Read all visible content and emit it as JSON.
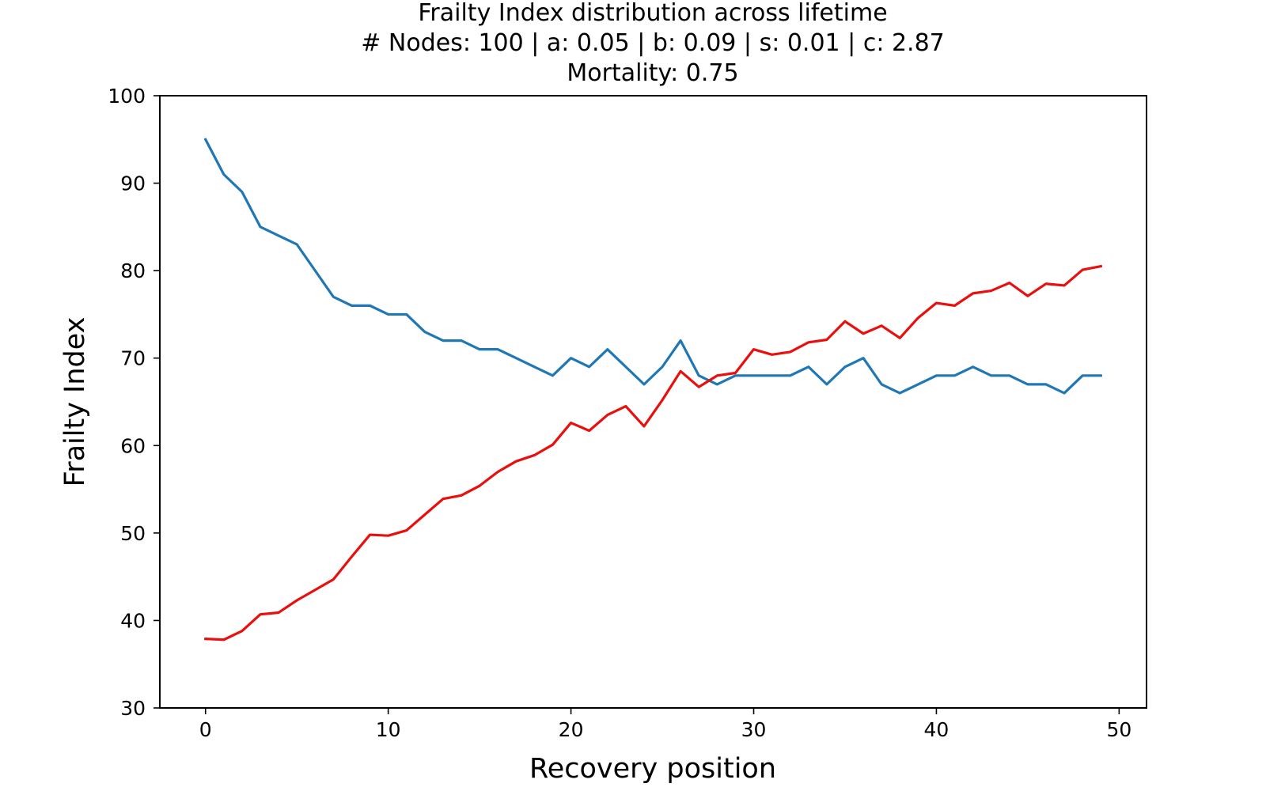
{
  "chart_data": {
    "type": "line",
    "title_lines": [
      "Frailty Index distribution across lifetime",
      "# Nodes: 100 | a: 0.05 | b: 0.09 | s: 0.01 | c: 2.87",
      "Mortality: 0.75"
    ],
    "xlabel": "Recovery position",
    "ylabel": "Frailty Index",
    "xlim": [
      -2.5,
      51.5
    ],
    "ylim": [
      30,
      100
    ],
    "xticks": [
      0,
      10,
      20,
      30,
      40,
      50
    ],
    "yticks": [
      30,
      40,
      50,
      60,
      70,
      80,
      90,
      100
    ],
    "grid": false,
    "x": [
      0,
      1,
      2,
      3,
      4,
      5,
      6,
      7,
      8,
      9,
      10,
      11,
      12,
      13,
      14,
      15,
      16,
      17,
      18,
      19,
      20,
      21,
      22,
      23,
      24,
      25,
      26,
      27,
      28,
      29,
      30,
      31,
      32,
      33,
      34,
      35,
      36,
      37,
      38,
      39,
      40,
      41,
      42,
      43,
      44,
      45,
      46,
      47,
      48,
      49
    ],
    "series": [
      {
        "color": "#1f77b4",
        "values": [
          95,
          91,
          89,
          85,
          84,
          83,
          80,
          77,
          76,
          76,
          75,
          75,
          73,
          72,
          72,
          71,
          71,
          70,
          69,
          68,
          70,
          69,
          71,
          69,
          67,
          69,
          72,
          68,
          67,
          68,
          68,
          68,
          68,
          69,
          67,
          69,
          70,
          67,
          66,
          67,
          68,
          68,
          69,
          68,
          68,
          67,
          67,
          66,
          68,
          68
        ]
      },
      {
        "color": "#e8100f",
        "values": [
          37.9,
          37.8,
          38.8,
          40.7,
          40.9,
          42.3,
          43.5,
          44.7,
          47.3,
          49.8,
          49.7,
          50.3,
          52.1,
          53.9,
          54.3,
          55.4,
          57.0,
          58.2,
          58.9,
          60.1,
          62.6,
          61.7,
          63.5,
          64.5,
          62.2,
          65.2,
          68.5,
          66.7,
          68.0,
          68.3,
          71.0,
          70.4,
          70.7,
          71.8,
          72.1,
          74.2,
          72.8,
          73.7,
          72.3,
          74.6,
          76.3,
          76.0,
          77.4,
          77.7,
          78.6,
          77.1,
          78.5,
          78.3,
          80.1,
          80.5
        ]
      }
    ]
  }
}
